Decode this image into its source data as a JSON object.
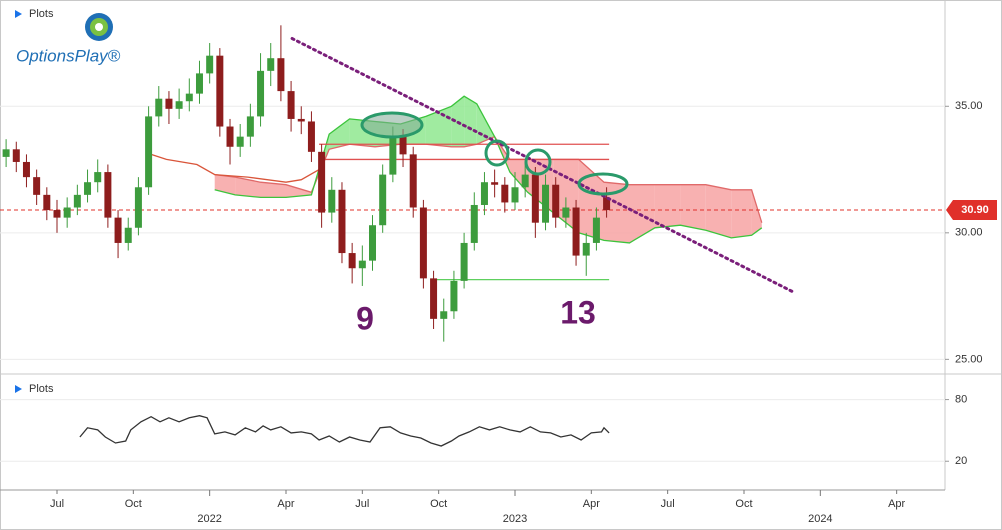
{
  "brand": "OptionsPlay®",
  "chart_data": [
    {
      "type": "candlestick",
      "title": "Plots",
      "x": [
        -2.0,
        -1.6,
        -1.2,
        -0.8,
        -0.4,
        0.0,
        0.4,
        0.8,
        1.2,
        1.6,
        2.0,
        2.4,
        2.8,
        3.2,
        3.6,
        4.0,
        4.4,
        4.8,
        5.2,
        5.6,
        6.0,
        6.4,
        6.8,
        7.2,
        7.6,
        8.0,
        8.4,
        8.8,
        9.2,
        9.6,
        10.0,
        10.4,
        10.8,
        11.2,
        11.6,
        12.0,
        12.4,
        12.8,
        13.2,
        13.6,
        14.0,
        14.4,
        14.8,
        15.2,
        15.6,
        16.0,
        16.4,
        16.8,
        17.2,
        17.6,
        18.0,
        18.4,
        18.8,
        19.2,
        19.6,
        20.0,
        20.4,
        20.8,
        21.2,
        21.6
      ],
      "open": [
        33.0,
        33.3,
        32.8,
        32.2,
        31.5,
        30.9,
        30.6,
        31.0,
        31.5,
        32.0,
        32.4,
        30.6,
        29.6,
        30.2,
        31.8,
        34.6,
        35.3,
        34.9,
        35.2,
        35.5,
        36.3,
        37.0,
        34.2,
        33.4,
        33.8,
        34.6,
        36.4,
        36.9,
        35.6,
        34.5,
        34.4,
        33.2,
        30.8,
        31.7,
        29.2,
        28.6,
        28.9,
        30.3,
        32.3,
        33.8,
        33.1,
        31.0,
        28.2,
        26.6,
        26.9,
        28.1,
        29.6,
        31.1,
        32.0,
        31.9,
        31.2,
        31.8,
        32.3,
        30.4,
        31.9,
        30.6,
        31.0,
        29.1,
        29.6,
        31.4
      ],
      "high": [
        33.7,
        33.6,
        33.1,
        32.5,
        31.8,
        31.3,
        31.4,
        31.9,
        32.5,
        32.9,
        32.7,
        30.9,
        30.6,
        32.2,
        35.0,
        35.8,
        35.6,
        35.7,
        36.1,
        36.8,
        37.5,
        37.3,
        34.5,
        34.3,
        35.1,
        37.1,
        37.5,
        38.2,
        36.0,
        35.0,
        34.8,
        33.5,
        32.2,
        32.0,
        29.6,
        29.5,
        30.7,
        32.7,
        34.2,
        34.1,
        33.4,
        31.3,
        28.5,
        27.4,
        28.5,
        30.0,
        31.6,
        32.4,
        32.5,
        32.2,
        32.4,
        32.8,
        32.6,
        32.3,
        32.2,
        31.4,
        31.3,
        30.0,
        31.0,
        31.8
      ],
      "low": [
        32.6,
        32.4,
        31.8,
        31.1,
        30.5,
        30.0,
        30.2,
        30.7,
        31.2,
        31.6,
        30.2,
        29.0,
        29.3,
        29.9,
        31.5,
        34.2,
        34.3,
        34.5,
        34.8,
        35.1,
        35.9,
        33.8,
        32.7,
        33.0,
        33.4,
        34.2,
        35.8,
        35.2,
        34.0,
        33.9,
        32.8,
        30.2,
        30.4,
        28.8,
        28.0,
        27.9,
        28.5,
        30.0,
        32.0,
        32.6,
        30.6,
        27.8,
        26.2,
        25.7,
        26.6,
        27.8,
        29.3,
        30.7,
        31.4,
        30.8,
        30.9,
        31.4,
        29.8,
        30.1,
        30.2,
        30.2,
        28.7,
        28.3,
        29.3,
        30.6
      ],
      "close": [
        33.3,
        32.8,
        32.2,
        31.5,
        30.9,
        30.6,
        31.0,
        31.5,
        32.0,
        32.4,
        30.6,
        29.6,
        30.2,
        31.8,
        34.6,
        35.3,
        34.9,
        35.2,
        35.5,
        36.3,
        37.0,
        34.2,
        33.4,
        33.8,
        34.6,
        36.4,
        36.9,
        35.6,
        34.5,
        34.4,
        33.2,
        30.8,
        31.7,
        29.2,
        28.6,
        28.9,
        30.3,
        32.3,
        33.8,
        33.1,
        31.0,
        28.2,
        26.6,
        26.9,
        28.1,
        29.6,
        31.1,
        32.0,
        31.9,
        31.2,
        31.8,
        32.3,
        30.4,
        31.9,
        30.6,
        31.0,
        29.1,
        29.6,
        30.6,
        30.9
      ],
      "up_color": "#3d9c3d",
      "down_color": "#8e1d1d",
      "xlim": [
        -2.24,
        34.9
      ],
      "ylim": [
        24.5,
        39.2
      ],
      "yticks": [
        {
          "value": 25,
          "label": "25.00"
        },
        {
          "value": 30,
          "label": "30.00"
        },
        {
          "value": 35,
          "label": "35.00"
        }
      ],
      "grid": true,
      "cloud": {
        "x": [
          6.2,
          7.0,
          8.0,
          9.0,
          10.0,
          10.7,
          11.5,
          12.5,
          13.5,
          14.5,
          15.5,
          16.0,
          16.5,
          17.2,
          17.8,
          18.5,
          19.5,
          20.5,
          21.5,
          22.5,
          23.5,
          24.5,
          25.5,
          26.5,
          27.3,
          27.7
        ],
        "span_a": [
          31.7,
          31.5,
          31.4,
          31.4,
          31.5,
          33.9,
          34.5,
          34.4,
          34.3,
          34.6,
          35.0,
          35.4,
          35.1,
          33.8,
          32.4,
          31.6,
          30.8,
          30.0,
          29.7,
          29.6,
          30.2,
          30.3,
          30.1,
          29.8,
          29.9,
          30.2
        ],
        "span_b": [
          32.3,
          32.2,
          32.0,
          31.9,
          31.6,
          33.3,
          33.5,
          33.4,
          33.5,
          33.5,
          33.4,
          33.4,
          33.5,
          33.8,
          32.9,
          32.9,
          32.9,
          32.9,
          32.0,
          31.9,
          31.9,
          31.9,
          31.9,
          31.7,
          31.7,
          30.4
        ],
        "up_color": "#8fe88f",
        "down_color": "#f7a3a3",
        "a_color": "#3cc43c",
        "b_color": "#e06a6a"
      },
      "base_line": {
        "x": [
          3.7,
          4.3,
          5.5,
          6.2,
          7.5,
          9.0,
          9.6,
          10.3
        ],
        "values": [
          33.1,
          32.9,
          32.7,
          32.3,
          32.2,
          32.0,
          32.1,
          32.5
        ],
        "color": "#d9553a"
      },
      "trend_line": {
        "x": [
          9.24,
          28.9
        ],
        "values": [
          37.68,
          27.68
        ],
        "color": "#7a1f7a"
      },
      "levels": [
        {
          "value": 33.5,
          "x": [
            10.3,
            21.7
          ],
          "color": "#e05050"
        },
        {
          "value": 32.9,
          "x": [
            10.3,
            21.7
          ],
          "color": "#e05050"
        },
        {
          "value": 28.15,
          "x": [
            14.9,
            21.7
          ],
          "color": "#5ed05e"
        }
      ],
      "last_price": {
        "value": 30.9,
        "label": "30.90",
        "color": "#e0302a"
      },
      "annotations": [
        "9",
        "13"
      ]
    },
    {
      "type": "line",
      "title": "Plots",
      "x": [
        0.9,
        1.2,
        1.6,
        1.9,
        2.3,
        2.7,
        2.9,
        3.3,
        3.7,
        4.05,
        4.4,
        4.8,
        5.2,
        5.6,
        5.9,
        6.2,
        6.6,
        7.0,
        7.4,
        7.8,
        8.1,
        8.4,
        8.8,
        9.2,
        9.6,
        10.0,
        10.3,
        10.7,
        11.1,
        11.5,
        11.9,
        12.3,
        12.7,
        13.1,
        13.5,
        13.9,
        14.3,
        14.7,
        15.1,
        15.5,
        15.8,
        16.2,
        16.6,
        17.0,
        17.4,
        17.8,
        18.2,
        18.6,
        19.0,
        19.4,
        19.8,
        20.2,
        20.6,
        21.0,
        21.4,
        21.5,
        21.7
      ],
      "values": [
        43.6,
        52.5,
        50.5,
        43.6,
        37.7,
        39.7,
        50.5,
        58.4,
        63.3,
        58.4,
        62.3,
        58.4,
        62.3,
        64.3,
        62.3,
        46.6,
        48.5,
        45.6,
        52.5,
        48.5,
        54.4,
        50.5,
        53.5,
        47.6,
        48.5,
        46.6,
        40.7,
        44.6,
        38.7,
        43.6,
        40.7,
        38.7,
        52.5,
        53.5,
        47.6,
        44.6,
        42.6,
        37.7,
        34.8,
        39.7,
        44.6,
        48.5,
        53.5,
        50.5,
        53.5,
        50.5,
        48.5,
        53.5,
        48.5,
        47.6,
        43.6,
        45.6,
        40.7,
        47.6,
        48.5,
        52.5,
        47.6
      ],
      "color": "#333333",
      "xlim": [
        -2.24,
        34.9
      ],
      "ylim": [
        -8,
        101
      ],
      "yticks": [
        20,
        80
      ],
      "grid": true,
      "xticks": [
        {
          "value": 0,
          "label": "Jul"
        },
        {
          "value": 3,
          "label": "Oct"
        },
        {
          "value": 6,
          "label": "2022"
        },
        {
          "value": 9,
          "label": "Apr"
        },
        {
          "value": 12,
          "label": "Jul"
        },
        {
          "value": 15,
          "label": "Oct"
        },
        {
          "value": 18,
          "label": "2023"
        },
        {
          "value": 21,
          "label": "Apr"
        },
        {
          "value": 24,
          "label": "Jul"
        },
        {
          "value": 27,
          "label": "Oct"
        },
        {
          "value": 30,
          "label": "2024"
        },
        {
          "value": 33,
          "label": "Apr"
        }
      ]
    }
  ]
}
